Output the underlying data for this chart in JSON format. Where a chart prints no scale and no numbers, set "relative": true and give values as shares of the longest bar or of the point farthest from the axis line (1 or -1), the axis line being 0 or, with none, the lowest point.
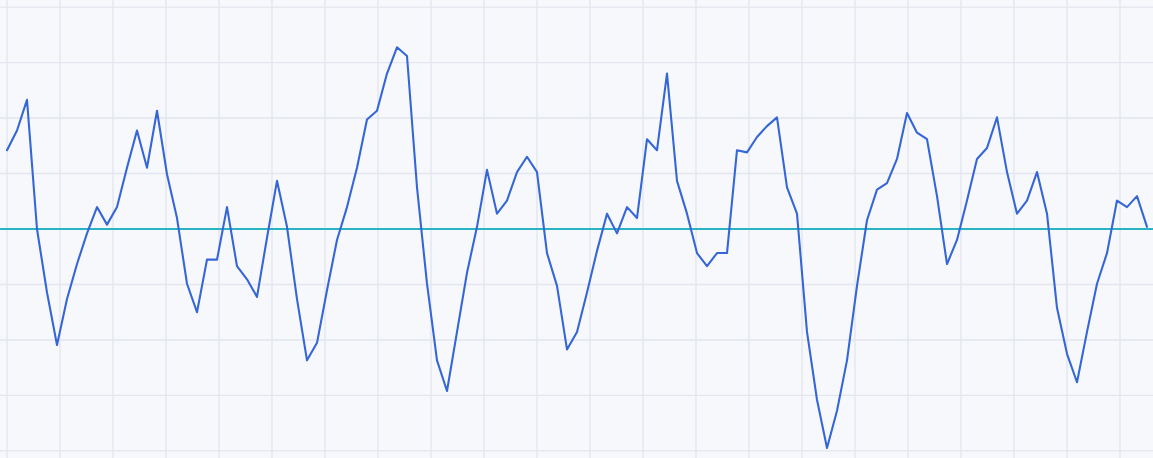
{
  "chart_data": {
    "type": "line",
    "relative": true,
    "grid": true,
    "marker": "none",
    "line_style": "solid",
    "categories": [
      null,
      null,
      null,
      null,
      null,
      null,
      null,
      null,
      null,
      null,
      null,
      null,
      null,
      null,
      null,
      null,
      null,
      null,
      null,
      null,
      null,
      null,
      null,
      null,
      null,
      null,
      null,
      null,
      null,
      null,
      null,
      null,
      null,
      null,
      null,
      null,
      null,
      null,
      null,
      null,
      null,
      null,
      null,
      null,
      null,
      null,
      null,
      null,
      null,
      null,
      null,
      null,
      null,
      null,
      null,
      null,
      null,
      null,
      null,
      null,
      null,
      null,
      null,
      null,
      null,
      null,
      null,
      null,
      null,
      null,
      null,
      null,
      null,
      null,
      null,
      null,
      null,
      null,
      null,
      null,
      null,
      null,
      null,
      null,
      null,
      null,
      null,
      null,
      null,
      null,
      null,
      null,
      null,
      null,
      null,
      null,
      null,
      null,
      null,
      null,
      null,
      null,
      null,
      null,
      null,
      null,
      null,
      null,
      null,
      null,
      null,
      null,
      null,
      null,
      null
    ],
    "series": [
      {
        "color": "#3566d8",
        "values": [
          0.36,
          0.45,
          0.59,
          0.0,
          -0.29,
          -0.53,
          -0.32,
          -0.16,
          -0.02,
          0.1,
          0.02,
          0.1,
          0.28,
          0.45,
          0.28,
          0.54,
          0.25,
          0.05,
          -0.25,
          -0.38,
          -0.14,
          -0.14,
          0.1,
          -0.17,
          -0.23,
          -0.31,
          -0.04,
          0.22,
          0.01,
          -0.32,
          -0.6,
          -0.52,
          -0.28,
          -0.05,
          0.1,
          0.28,
          0.5,
          0.54,
          0.71,
          0.83,
          0.79,
          0.19,
          -0.25,
          -0.6,
          -0.74,
          -0.47,
          -0.2,
          0.01,
          0.27,
          0.07,
          0.13,
          0.26,
          0.33,
          0.26,
          -0.11,
          -0.26,
          -0.55,
          -0.47,
          -0.29,
          -0.1,
          0.07,
          -0.02,
          0.1,
          0.05,
          0.41,
          0.36,
          0.71,
          0.22,
          0.07,
          -0.11,
          -0.17,
          -0.11,
          -0.11,
          0.36,
          0.35,
          0.42,
          0.47,
          0.51,
          0.19,
          0.07,
          -0.47,
          -0.78,
          -1,
          -0.83,
          -0.6,
          -0.26,
          0.04,
          0.18,
          0.21,
          0.32,
          0.53,
          0.44,
          0.41,
          0.15,
          -0.16,
          -0.05,
          0.13,
          0.32,
          0.37,
          0.51,
          0.26,
          0.07,
          0.13,
          0.26,
          0.07,
          -0.36,
          -0.57,
          -0.7,
          -0.47,
          -0.25,
          -0.11,
          0.13,
          0.1,
          0.15,
          0.01
        ]
      }
    ],
    "ref_lines": [
      {
        "axis": "y",
        "value": 0,
        "color": "#2ab3c2"
      }
    ]
  }
}
